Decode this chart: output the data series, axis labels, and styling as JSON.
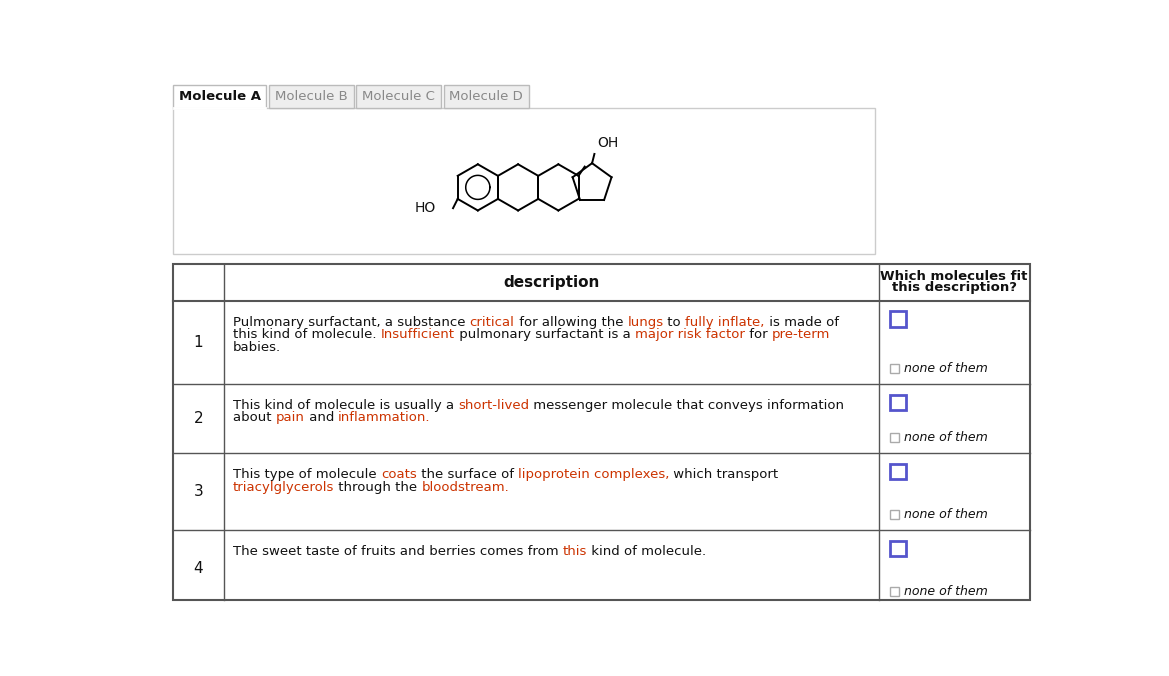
{
  "tabs": [
    "Molecule A",
    "Molecule B",
    "Molecule C",
    "Molecule D"
  ],
  "active_tab": 0,
  "tab_bg": "#eeeeee",
  "active_tab_bg": "#ffffff",
  "tab_border": "#bbbbbb",
  "molecule_area_bg": "#ffffff",
  "molecule_area_border": "#cccccc",
  "table_header": "description",
  "table_header2_line1": "Which molecules fit",
  "table_header2_line2": "this description?",
  "rows": [
    {
      "number": "1",
      "text_segments": [
        {
          "t": "Pulmonary surfactant, a substance ",
          "red": false
        },
        {
          "t": "critical",
          "red": true
        },
        {
          "t": " for allowing the ",
          "red": false
        },
        {
          "t": "lungs",
          "red": true
        },
        {
          "t": " to ",
          "red": false
        },
        {
          "t": "fully inflate,",
          "red": true
        },
        {
          "t": " is made of\nthis kind of molecule. ",
          "red": false
        },
        {
          "t": "Insufficient",
          "red": true
        },
        {
          "t": " pulmonary surfactant is a ",
          "red": false
        },
        {
          "t": "major risk factor",
          "red": true
        },
        {
          "t": " for ",
          "red": false
        },
        {
          "t": "pre-term",
          "red": true
        },
        {
          "t": "\nbabies.",
          "red": false
        }
      ]
    },
    {
      "number": "2",
      "text_segments": [
        {
          "t": "This kind of molecule is usually a ",
          "red": false
        },
        {
          "t": "short-lived",
          "red": true
        },
        {
          "t": " messenger molecule that conveys information\nabout ",
          "red": false
        },
        {
          "t": "pain",
          "red": true
        },
        {
          "t": " and ",
          "red": false
        },
        {
          "t": "inflammation.",
          "red": true
        }
      ]
    },
    {
      "number": "3",
      "text_segments": [
        {
          "t": "This type of molecule ",
          "red": false
        },
        {
          "t": "coats",
          "red": true
        },
        {
          "t": " the surface of ",
          "red": false
        },
        {
          "t": "lipoprotein complexes,",
          "red": true
        },
        {
          "t": " which transport\n",
          "red": false
        },
        {
          "t": "triacylglycerols",
          "red": true
        },
        {
          "t": " through the ",
          "red": false
        },
        {
          "t": "bloodstream.",
          "red": true
        }
      ]
    },
    {
      "number": "4",
      "text_segments": [
        {
          "t": "The sweet taste of fruits and berries comes from ",
          "red": false
        },
        {
          "t": "this",
          "red": true
        },
        {
          "t": " kind of molecule.",
          "red": false
        }
      ]
    }
  ],
  "text_color": "#111111",
  "highlight_color": "#cc3300",
  "checkbox_color_large": "#5555cc",
  "checkbox_color_small": "#aaaaaa",
  "none_of_them_text": "none of them",
  "background_color": "#ffffff",
  "table_border": "#555555"
}
